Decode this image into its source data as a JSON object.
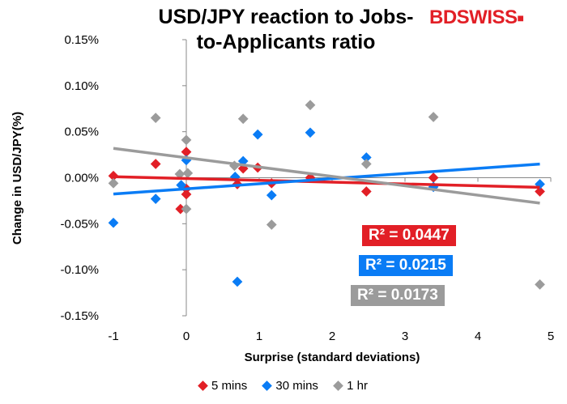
{
  "chart_data": {
    "type": "scatter",
    "title": "USD/JPY reaction to Jobs-to-Applicants ratio",
    "xlabel": "Surprise (standard deviations)",
    "ylabel": "Change in USD/JPY(%)",
    "xlim": [
      -1,
      5
    ],
    "ylim": [
      -0.15,
      0.15
    ],
    "xticks": [
      "-1",
      "0",
      "1",
      "2",
      "3",
      "4",
      "5"
    ],
    "yticks": [
      "0.15%",
      "0.10%",
      "0.05%",
      "0.00%",
      "-0.05%",
      "-0.10%",
      "-0.15%"
    ],
    "grid": false,
    "legend_position": "bottom",
    "series": [
      {
        "name": "5 mins",
        "color": "#e21f26",
        "r2_label": "R² = 0.0447",
        "points": [
          [
            -1,
            0.002
          ],
          [
            -0.42,
            0.015
          ],
          [
            0,
            0.028
          ],
          [
            0,
            -0.012
          ],
          [
            0,
            -0.018
          ],
          [
            -0.08,
            -0.034
          ],
          [
            0.78,
            0.01
          ],
          [
            0.98,
            0.011
          ],
          [
            0.7,
            -0.007
          ],
          [
            1.17,
            -0.006
          ],
          [
            1.7,
            0.0
          ],
          [
            2.47,
            -0.015
          ],
          [
            3.39,
            0.0
          ],
          [
            4.85,
            -0.015
          ]
        ]
      },
      {
        "name": "30 mins",
        "color": "#0a7cf5",
        "r2_label": "R² = 0.0215",
        "points": [
          [
            -1,
            -0.049
          ],
          [
            -0.42,
            -0.023
          ],
          [
            0,
            0.019
          ],
          [
            -0.07,
            -0.008
          ],
          [
            0.78,
            0.018
          ],
          [
            0.98,
            0.047
          ],
          [
            1.17,
            -0.019
          ],
          [
            0.67,
            0.001
          ],
          [
            0.7,
            -0.113
          ],
          [
            1.7,
            0.049
          ],
          [
            2.47,
            0.022
          ],
          [
            3.39,
            -0.01
          ],
          [
            4.85,
            -0.007
          ]
        ]
      },
      {
        "name": "1 hr",
        "color": "#9b9b9b",
        "r2_label": "R² = 0.0173",
        "points": [
          [
            -1,
            -0.006
          ],
          [
            -0.42,
            0.065
          ],
          [
            0,
            0.041
          ],
          [
            0,
            -0.034
          ],
          [
            -0.09,
            0.004
          ],
          [
            0.02,
            0.005
          ],
          [
            0.66,
            0.013
          ],
          [
            0.78,
            0.064
          ],
          [
            1.17,
            -0.051
          ],
          [
            1.7,
            0.079
          ],
          [
            2.47,
            0.015
          ],
          [
            3.39,
            0.066
          ],
          [
            4.85,
            -0.116
          ]
        ]
      }
    ]
  },
  "logo": {
    "text": "BDSWISS"
  }
}
